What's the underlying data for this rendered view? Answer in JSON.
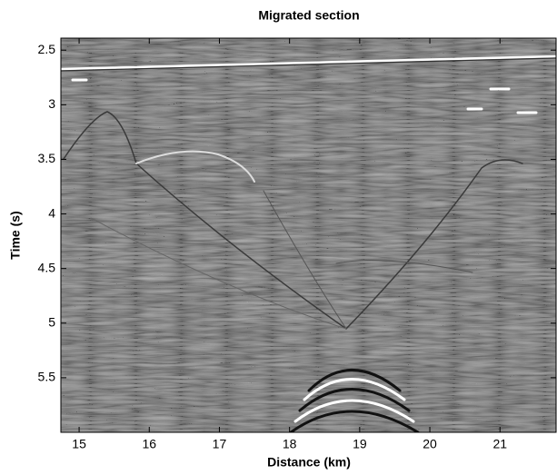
{
  "chart_data": {
    "type": "image",
    "title": "Migrated section",
    "xlabel": "Distance (km)",
    "ylabel": "Time (s)",
    "xlim": [
      14.74,
      21.8
    ],
    "xticks": [
      15,
      16,
      17,
      18,
      19,
      20,
      21
    ],
    "ylim": [
      2.39,
      6.0
    ],
    "yticks": [
      2.5,
      3,
      3.5,
      4,
      4.5,
      5,
      5.5
    ],
    "y_reversed": true,
    "colormap": "gray"
  }
}
